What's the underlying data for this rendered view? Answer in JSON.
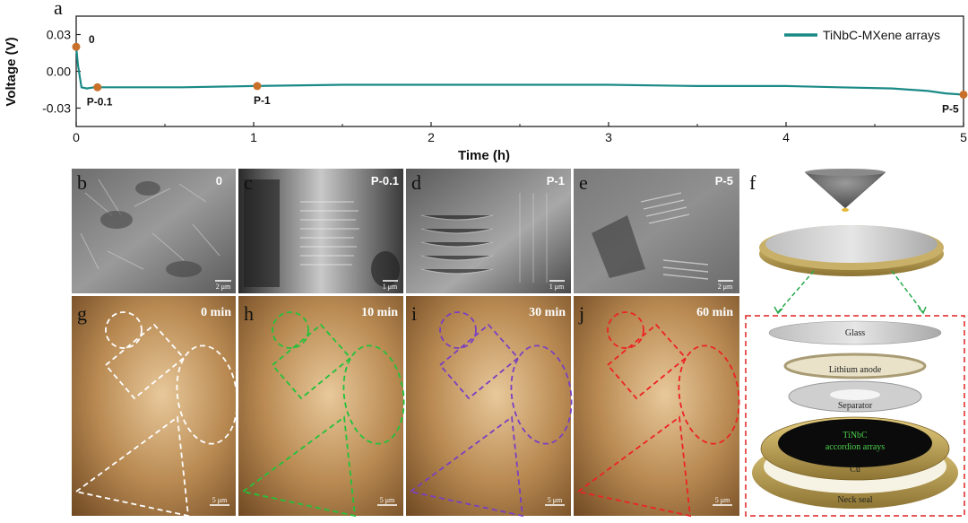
{
  "figure": {
    "panel_letters": {
      "a": "a",
      "b": "b",
      "c": "c",
      "d": "d",
      "e": "e",
      "f": "f",
      "g": "g",
      "h": "h",
      "i": "i",
      "j": "j"
    },
    "sem_panels": [
      {
        "letter": "b",
        "tag": "0",
        "scale": "2 μm"
      },
      {
        "letter": "c",
        "tag": "P-0.1",
        "scale": "1 μm"
      },
      {
        "letter": "d",
        "tag": "P-1",
        "scale": "1 μm"
      },
      {
        "letter": "e",
        "tag": "P-5",
        "scale": "2 μm"
      }
    ],
    "optical_panels": [
      {
        "letter": "g",
        "time": "0 min",
        "scale": "5 μm",
        "color": "#ffffff"
      },
      {
        "letter": "h",
        "time": "10 min",
        "scale": "5 μm",
        "color": "#22c23a"
      },
      {
        "letter": "i",
        "time": "30 min",
        "scale": "5 μm",
        "color": "#7a3fc2"
      },
      {
        "letter": "j",
        "time": "60 min",
        "scale": "5 μm",
        "color": "#ee2222"
      }
    ],
    "cell_schematic": {
      "layers": [
        "Glass",
        "Lithium  anode",
        "Separator",
        "TiNbC",
        "accordion arrays",
        "Cu",
        "Neck seal"
      ]
    }
  },
  "chart_data": {
    "type": "line",
    "title": "",
    "xlabel": "Time (h)",
    "ylabel": "Voltage (V)",
    "xlim": [
      0,
      5
    ],
    "ylim": [
      -0.045,
      0.045
    ],
    "xticks": [
      0,
      1,
      2,
      3,
      4,
      5
    ],
    "yticks": [
      0.03,
      0.0,
      -0.03
    ],
    "ytick_labels": [
      "0.03",
      "0.00",
      "-0.03"
    ],
    "legend_position": "top-right",
    "series": [
      {
        "name": "TiNbC-MXene arrays",
        "color": "#1a8a86",
        "x": [
          0,
          0.01,
          0.03,
          0.06,
          0.1,
          0.3,
          0.6,
          1.0,
          1.5,
          2.0,
          2.5,
          3.0,
          3.5,
          4.0,
          4.3,
          4.6,
          4.8,
          4.9,
          5.0
        ],
        "y": [
          0.02,
          0.005,
          -0.013,
          -0.014,
          -0.013,
          -0.013,
          -0.013,
          -0.012,
          -0.011,
          -0.011,
          -0.011,
          -0.011,
          -0.012,
          -0.012,
          -0.013,
          -0.014,
          -0.016,
          -0.018,
          -0.019
        ]
      }
    ],
    "markers": {
      "color": "#c8702a",
      "points": [
        {
          "label": "0",
          "x": 0.0,
          "y": 0.02
        },
        {
          "label": "P-0.1",
          "x": 0.12,
          "y": -0.013
        },
        {
          "label": "P-1",
          "x": 1.02,
          "y": -0.012
        },
        {
          "label": "P-5",
          "x": 5.0,
          "y": -0.019
        }
      ]
    }
  }
}
